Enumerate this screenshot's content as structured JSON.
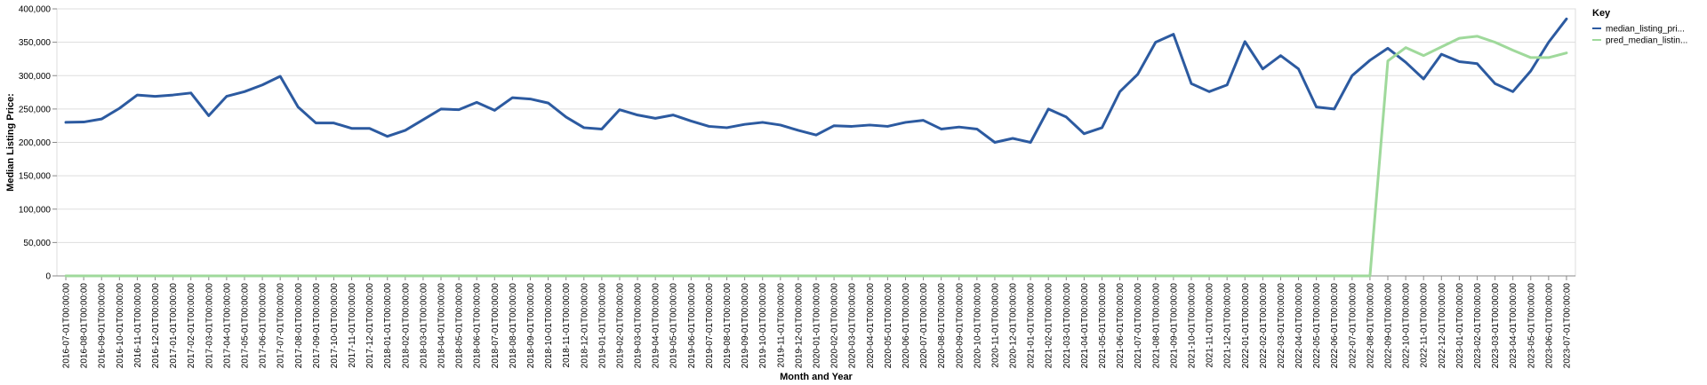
{
  "chart_data": {
    "type": "line",
    "xlabel": "Month and Year",
    "ylabel": "Median Listing Price:",
    "ylim": [
      0,
      400000
    ],
    "yticks": [
      "0",
      "50,000",
      "100,000",
      "150,000",
      "200,000",
      "250,000",
      "300,000",
      "350,000",
      "400,000"
    ],
    "grid": true,
    "legend_title": "Key",
    "legend_position": "right",
    "x": [
      "2016-07-01T00:00:00",
      "2016-08-01T00:00:00",
      "2016-09-01T00:00:00",
      "2016-10-01T00:00:00",
      "2016-11-01T00:00:00",
      "2016-12-01T00:00:00",
      "2017-01-01T00:00:00",
      "2017-02-01T00:00:00",
      "2017-03-01T00:00:00",
      "2017-04-01T00:00:00",
      "2017-05-01T00:00:00",
      "2017-06-01T00:00:00",
      "2017-07-01T00:00:00",
      "2017-08-01T00:00:00",
      "2017-09-01T00:00:00",
      "2017-10-01T00:00:00",
      "2017-11-01T00:00:00",
      "2017-12-01T00:00:00",
      "2018-01-01T00:00:00",
      "2018-02-01T00:00:00",
      "2018-03-01T00:00:00",
      "2018-04-01T00:00:00",
      "2018-05-01T00:00:00",
      "2018-06-01T00:00:00",
      "2018-07-01T00:00:00",
      "2018-08-01T00:00:00",
      "2018-09-01T00:00:00",
      "2018-10-01T00:00:00",
      "2018-11-01T00:00:00",
      "2018-12-01T00:00:00",
      "2019-01-01T00:00:00",
      "2019-02-01T00:00:00",
      "2019-03-01T00:00:00",
      "2019-04-01T00:00:00",
      "2019-05-01T00:00:00",
      "2019-06-01T00:00:00",
      "2019-07-01T00:00:00",
      "2019-08-01T00:00:00",
      "2019-09-01T00:00:00",
      "2019-10-01T00:00:00",
      "2019-11-01T00:00:00",
      "2019-12-01T00:00:00",
      "2020-01-01T00:00:00",
      "2020-02-01T00:00:00",
      "2020-03-01T00:00:00",
      "2020-04-01T00:00:00",
      "2020-05-01T00:00:00",
      "2020-06-01T00:00:00",
      "2020-07-01T00:00:00",
      "2020-08-01T00:00:00",
      "2020-09-01T00:00:00",
      "2020-10-01T00:00:00",
      "2020-11-01T00:00:00",
      "2020-12-01T00:00:00",
      "2021-01-01T00:00:00",
      "2021-02-01T00:00:00",
      "2021-03-01T00:00:00",
      "2021-04-01T00:00:00",
      "2021-05-01T00:00:00",
      "2021-06-01T00:00:00",
      "2021-07-01T00:00:00",
      "2021-08-01T00:00:00",
      "2021-09-01T00:00:00",
      "2021-10-01T00:00:00",
      "2021-11-01T00:00:00",
      "2021-12-01T00:00:00",
      "2022-01-01T00:00:00",
      "2022-02-01T00:00:00",
      "2022-03-01T00:00:00",
      "2022-04-01T00:00:00",
      "2022-05-01T00:00:00",
      "2022-06-01T00:00:00",
      "2022-07-01T00:00:00",
      "2022-08-01T00:00:00",
      "2022-09-01T00:00:00",
      "2022-10-01T00:00:00",
      "2022-11-01T00:00:00",
      "2022-12-01T00:00:00",
      "2023-01-01T00:00:00",
      "2023-02-01T00:00:00",
      "2023-03-01T00:00:00",
      "2023-04-01T00:00:00",
      "2023-05-01T00:00:00",
      "2023-06-01T00:00:00",
      "2023-07-01T00:00:00"
    ],
    "series": [
      {
        "name": "median_listing_pri...",
        "color": "#2c5aa0",
        "values": [
          230000,
          230500,
          235000,
          251000,
          271000,
          269000,
          271000,
          274000,
          240000,
          269000,
          276000,
          286000,
          299000,
          253000,
          229000,
          229000,
          221000,
          221000,
          209000,
          218000,
          234000,
          250000,
          249000,
          260000,
          248000,
          267000,
          265000,
          259000,
          238000,
          222000,
          220000,
          249000,
          241000,
          236000,
          241000,
          232000,
          224000,
          222000,
          227000,
          230000,
          226000,
          218000,
          211000,
          225000,
          224000,
          226000,
          224000,
          230000,
          233000,
          220000,
          223000,
          220000,
          200000,
          206000,
          200000,
          250000,
          238000,
          213000,
          222000,
          276000,
          302000,
          350000,
          362000,
          288000,
          276000,
          286000,
          351000,
          310000,
          330000,
          310000,
          253000,
          250000,
          300000,
          323000,
          341000,
          320000,
          295000,
          332000,
          321000,
          318000,
          288000,
          276000,
          307000,
          350000,
          385000
        ]
      },
      {
        "name": "pred_median_listin...",
        "color": "#9fd99b",
        "values": [
          0,
          0,
          0,
          0,
          0,
          0,
          0,
          0,
          0,
          0,
          0,
          0,
          0,
          0,
          0,
          0,
          0,
          0,
          0,
          0,
          0,
          0,
          0,
          0,
          0,
          0,
          0,
          0,
          0,
          0,
          0,
          0,
          0,
          0,
          0,
          0,
          0,
          0,
          0,
          0,
          0,
          0,
          0,
          0,
          0,
          0,
          0,
          0,
          0,
          0,
          0,
          0,
          0,
          0,
          0,
          0,
          0,
          0,
          0,
          0,
          0,
          0,
          0,
          0,
          0,
          0,
          0,
          0,
          0,
          0,
          0,
          0,
          0,
          0,
          322000,
          342000,
          330000,
          343000,
          356000,
          359000,
          350000,
          338000,
          327000,
          327000,
          334000
        ]
      }
    ]
  }
}
